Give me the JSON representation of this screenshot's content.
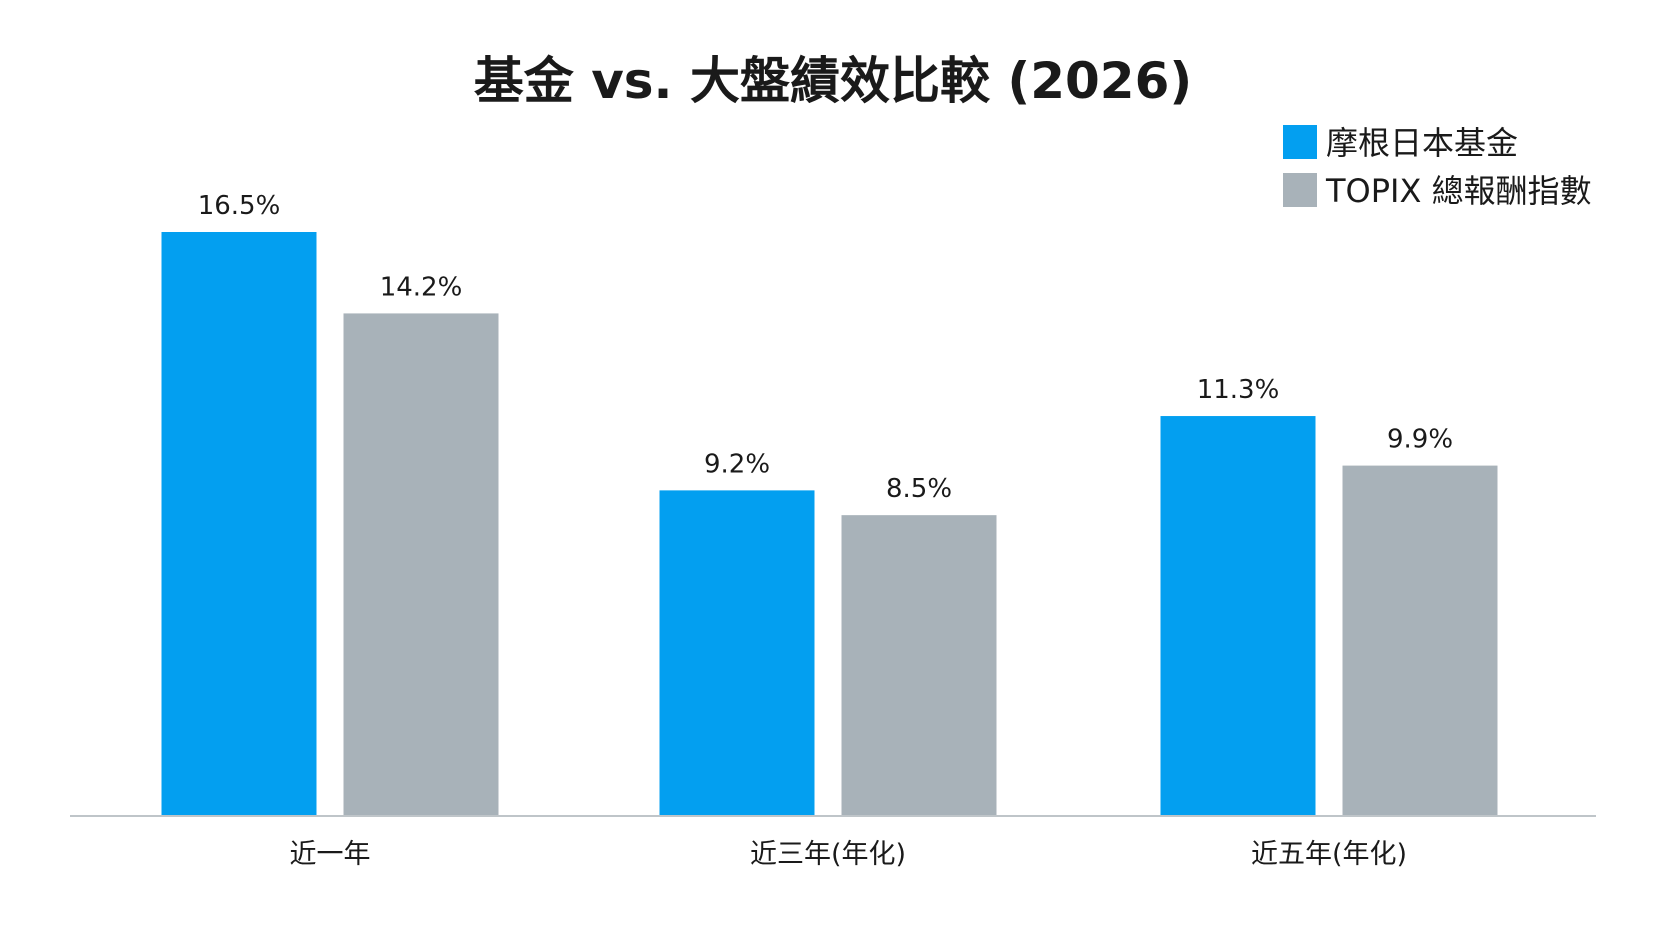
{
  "chart_data": {
    "type": "bar",
    "title": "基金 vs. 大盤績效比較 (2026)",
    "categories": [
      "近一年",
      "近三年(年化)",
      "近五年(年化)"
    ],
    "series": [
      {
        "name": "摩根日本基金",
        "values": [
          16.5,
          9.2,
          11.3
        ],
        "color": "#039FF0"
      },
      {
        "name": "TOPIX 總報酬指數",
        "values": [
          14.2,
          8.5,
          9.9
        ],
        "color": "#A8B2B9"
      }
    ],
    "value_suffix": "%",
    "ylim": [
      0,
      16.5
    ],
    "grid": false,
    "legend_position": "top-right",
    "axis_color": "#BFC5C9"
  }
}
